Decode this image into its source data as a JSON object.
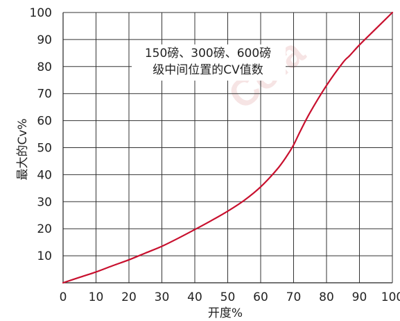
{
  "chart_data": {
    "type": "line",
    "title": "",
    "xlabel": "开度%",
    "ylabel": "最大的Cv%",
    "xlim": [
      0,
      100
    ],
    "ylim": [
      0,
      100
    ],
    "x_ticks": [
      0,
      10,
      20,
      30,
      40,
      50,
      60,
      70,
      80,
      90,
      100
    ],
    "y_ticks": [
      10,
      20,
      30,
      40,
      50,
      60,
      70,
      80,
      90,
      100
    ],
    "x_tick_labels": [
      "0",
      "10",
      "20",
      "30",
      "40",
      "50",
      "60",
      "70",
      "80",
      "90",
      "100"
    ],
    "y_tick_labels": [
      "10",
      "20",
      "30",
      "40",
      "50",
      "60",
      "70",
      "80",
      "90",
      "100"
    ],
    "grid": true,
    "annotation_lines": [
      "150磅、300磅、600磅",
      "级中间位置的CV值数"
    ],
    "watermark": "Cola",
    "series": [
      {
        "color": "#c8102e",
        "x": [
          0,
          5,
          10,
          15,
          20,
          25,
          30,
          35,
          40,
          45,
          50,
          55,
          60,
          65,
          68,
          70,
          72,
          75,
          80,
          85,
          87,
          90,
          95,
          100
        ],
        "y": [
          0,
          2,
          4,
          6.3,
          8.5,
          11,
          13.5,
          16.5,
          19.7,
          23,
          26.5,
          30.5,
          35.5,
          42,
          47,
          51,
          56,
          63,
          73,
          81.5,
          84,
          88,
          94,
          100
        ]
      }
    ]
  }
}
